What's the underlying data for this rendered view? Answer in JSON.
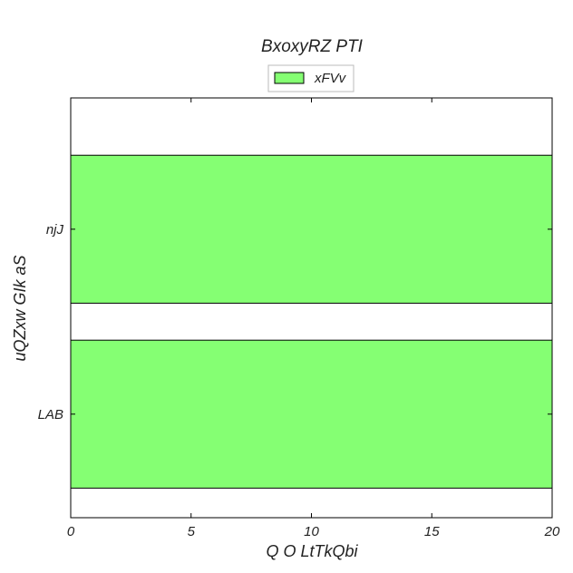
{
  "chart_data": {
    "type": "bar",
    "orientation": "horizontal",
    "title": "BxoxyRZ PTI",
    "xlabel": "Q O  LtTkQbi",
    "ylabel": "uQZxw GIk aS",
    "categories": [
      "LAB",
      "njJ"
    ],
    "series": [
      {
        "name": "xFVv",
        "values": [
          20,
          20
        ],
        "color": "#85ff73"
      }
    ],
    "xlim": [
      0,
      20
    ],
    "xticks": [
      0,
      5,
      10,
      15,
      20
    ],
    "grid": false,
    "legend": "top-center"
  }
}
